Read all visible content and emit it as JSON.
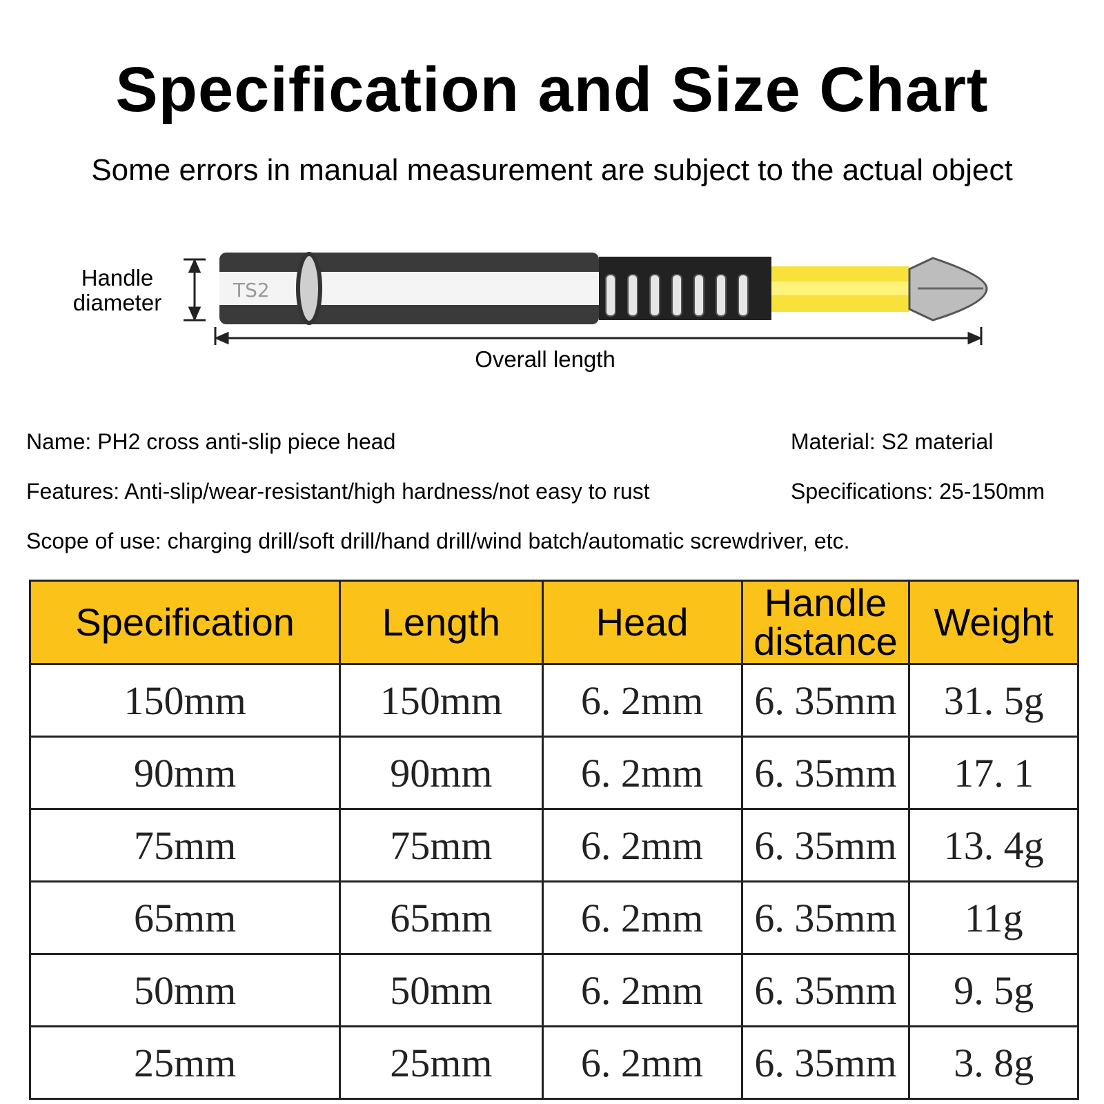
{
  "title": "Specification and Size Chart",
  "subtitle": "Some errors in manual measurement are subject to the actual object",
  "diagram": {
    "handle_label": "Handle diameter",
    "overall_label": "Overall length",
    "bit_marking": "TS2",
    "band_color": "#f7e13a"
  },
  "info": {
    "name": "Name: PH2 cross anti-slip piece head",
    "material": "Material: S2 material",
    "features": "Features: Anti-slip/wear-resistant/high hardness/not easy to rust",
    "specifications": "Specifications: 25-150mm",
    "scope": "Scope of use: charging drill/soft drill/hand drill/wind batch/automatic screwdriver, etc."
  },
  "table": {
    "header_color": "#fbc21a",
    "headers": [
      "Specification",
      "Length",
      "Head",
      "Handle distance",
      "Weight"
    ],
    "rows": [
      [
        "150mm",
        "150mm",
        "6. 2mm",
        "6. 35mm",
        "31. 5g"
      ],
      [
        "90mm",
        "90mm",
        "6. 2mm",
        "6. 35mm",
        "17. 1"
      ],
      [
        "75mm",
        "75mm",
        "6. 2mm",
        "6. 35mm",
        "13. 4g"
      ],
      [
        "65mm",
        "65mm",
        "6. 2mm",
        "6. 35mm",
        "11g"
      ],
      [
        "50mm",
        "50mm",
        "6. 2mm",
        "6. 35mm",
        "9. 5g"
      ],
      [
        "25mm",
        "25mm",
        "6. 2mm",
        "6. 35mm",
        "3. 8g"
      ]
    ]
  }
}
